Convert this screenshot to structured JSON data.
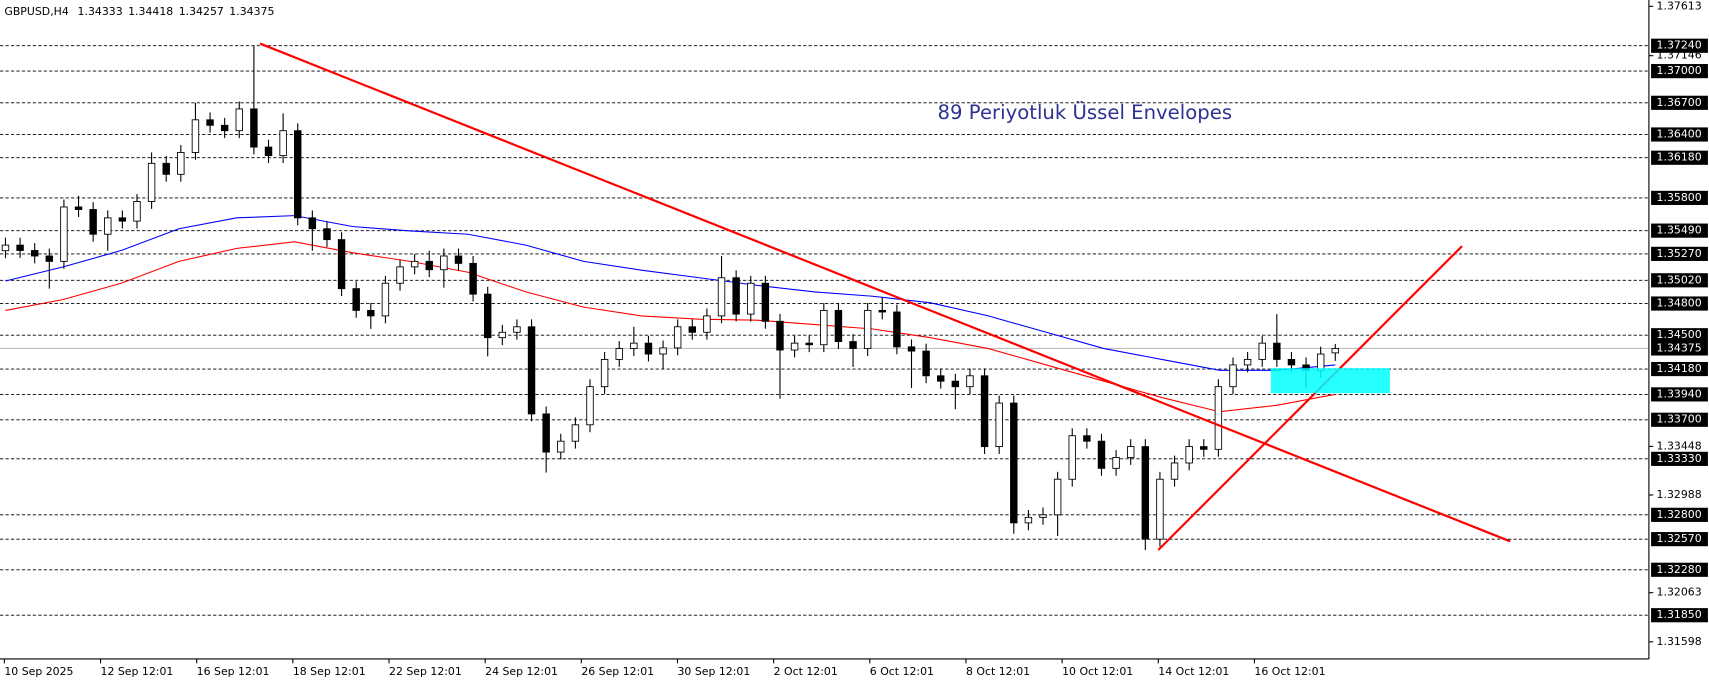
{
  "chart_data": {
    "type": "candlestick",
    "title": "GBPUSD,H4",
    "quote": [
      1.34333,
      1.34418,
      1.34257,
      1.34375
    ],
    "annotation": "89  Periyotluk Üssel Envelopes",
    "x_labels": [
      "10 Sep 2025",
      "12 Sep 12:01",
      "16 Sep 12:01",
      "18 Sep 12:01",
      "22 Sep 12:01",
      "24 Sep 12:01",
      "26 Sep 12:01",
      "30 Sep 12:01",
      "2 Oct 12:01",
      "6 Oct 12:01",
      "8 Oct 12:01",
      "10 Oct 12:01",
      "14 Oct 12:01",
      "16 Oct 12:01"
    ],
    "up_color": "#ffffff",
    "down_color": "#000000",
    "open": [
      1.353,
      1.35353,
      1.35302,
      1.3525,
      1.35199,
      1.35714,
      1.3569,
      1.35456,
      1.35611,
      1.3558,
      1.35766,
      1.36127,
      1.36023,
      1.3623,
      1.36539,
      1.36487,
      1.36436,
      1.36642,
      1.36281,
      1.362,
      1.36436,
      1.35611,
      1.35508,
      1.35405,
      1.34941,
      1.34735,
      1.34683,
      1.34992,
      1.35147,
      1.35199,
      1.3512,
      1.3525,
      1.3518,
      1.34889,
      1.34477,
      1.34528,
      1.3458,
      1.33755,
      1.33394,
      1.33497,
      1.33652,
      1.34013,
      1.34271,
      1.34374,
      1.34425,
      1.34322,
      1.3438,
      1.3458,
      1.34528,
      1.34683,
      1.35044,
      1.347,
      1.34992,
      1.34632,
      1.3436,
      1.34425,
      1.3441,
      1.34735,
      1.3444,
      1.34374,
      1.34735,
      1.3472,
      1.3439,
      1.3435,
      1.34116,
      1.34065,
      1.34013,
      1.34116,
      1.33446,
      1.33858,
      1.32724,
      1.32776,
      1.328,
      1.33137,
      1.33549,
      1.33497,
      1.3324,
      1.33343,
      1.33446,
      1.3257,
      1.33137,
      1.33291,
      1.33446,
      1.3342,
      1.34013,
      1.34219,
      1.34271,
      1.34425,
      1.34271,
      1.34219,
      1.34168,
      1.34333
    ],
    "high": [
      1.35423,
      1.35423,
      1.35372,
      1.3532,
      1.35784,
      1.3582,
      1.3576,
      1.35681,
      1.35681,
      1.35836,
      1.3623,
      1.36197,
      1.363,
      1.367,
      1.36609,
      1.36557,
      1.36712,
      1.3724,
      1.36351,
      1.366,
      1.36506,
      1.35681,
      1.35578,
      1.35475,
      1.35011,
      1.34805,
      1.35062,
      1.35217,
      1.35269,
      1.353,
      1.3532,
      1.3532,
      1.3525,
      1.34959,
      1.34598,
      1.3465,
      1.3465,
      1.33825,
      1.33567,
      1.33722,
      1.34083,
      1.34341,
      1.34444,
      1.3458,
      1.34495,
      1.3445,
      1.3465,
      1.3465,
      1.34753,
      1.3525,
      1.35114,
      1.35062,
      1.35062,
      1.34702,
      1.34495,
      1.34495,
      1.34805,
      1.34805,
      1.3451,
      1.34805,
      1.3486,
      1.3479,
      1.3446,
      1.3442,
      1.34186,
      1.34135,
      1.34186,
      1.34186,
      1.33928,
      1.33928,
      1.32846,
      1.3287,
      1.33207,
      1.33619,
      1.33619,
      1.33567,
      1.33413,
      1.33516,
      1.33516,
      1.33207,
      1.33361,
      1.33516,
      1.33516,
      1.34083,
      1.34289,
      1.34341,
      1.34495,
      1.347,
      1.34341,
      1.34289,
      1.34392,
      1.34418
    ],
    "low": [
      1.3523,
      1.35232,
      1.3518,
      1.34941,
      1.35129,
      1.3562,
      1.35386,
      1.353,
      1.3551,
      1.3551,
      1.35696,
      1.35953,
      1.35953,
      1.3616,
      1.36417,
      1.36366,
      1.36366,
      1.36211,
      1.3613,
      1.3613,
      1.35541,
      1.353,
      1.35335,
      1.34871,
      1.34665,
      1.3456,
      1.34613,
      1.34922,
      1.35077,
      1.3505,
      1.3495,
      1.3511,
      1.34819,
      1.343,
      1.34407,
      1.34458,
      1.33685,
      1.332,
      1.33324,
      1.33427,
      1.33582,
      1.33943,
      1.34201,
      1.34304,
      1.34252,
      1.3418,
      1.3431,
      1.34458,
      1.34458,
      1.34613,
      1.3463,
      1.3463,
      1.34562,
      1.339,
      1.3429,
      1.3434,
      1.3434,
      1.3437,
      1.342,
      1.34304,
      1.3465,
      1.3432,
      1.34,
      1.34046,
      1.33995,
      1.338,
      1.33943,
      1.33376,
      1.33376,
      1.32621,
      1.32654,
      1.32706,
      1.326,
      1.33067,
      1.33427,
      1.3317,
      1.3317,
      1.33273,
      1.32466,
      1.325,
      1.33067,
      1.33221,
      1.3335,
      1.3335,
      1.33943,
      1.34149,
      1.34201,
      1.34201,
      1.34149,
      1.34,
      1.34098,
      1.34257
    ],
    "close": [
      1.35353,
      1.35302,
      1.3525,
      1.35199,
      1.35714,
      1.3569,
      1.35456,
      1.35611,
      1.3558,
      1.35766,
      1.36127,
      1.36023,
      1.3623,
      1.36539,
      1.36487,
      1.36436,
      1.36642,
      1.36281,
      1.362,
      1.36436,
      1.35611,
      1.35508,
      1.35405,
      1.34941,
      1.34735,
      1.34683,
      1.34992,
      1.35147,
      1.35199,
      1.3512,
      1.3525,
      1.3518,
      1.34889,
      1.34477,
      1.34528,
      1.3458,
      1.33755,
      1.33394,
      1.33497,
      1.33652,
      1.34013,
      1.34271,
      1.34374,
      1.34425,
      1.34322,
      1.3438,
      1.3458,
      1.34528,
      1.34683,
      1.35044,
      1.347,
      1.34992,
      1.34632,
      1.3436,
      1.34425,
      1.3441,
      1.34735,
      1.3444,
      1.34374,
      1.34735,
      1.3472,
      1.3439,
      1.3435,
      1.34116,
      1.34065,
      1.34013,
      1.34116,
      1.33446,
      1.33858,
      1.32724,
      1.32776,
      1.328,
      1.33137,
      1.33549,
      1.33497,
      1.3324,
      1.33343,
      1.33446,
      1.3257,
      1.33137,
      1.33291,
      1.33446,
      1.3342,
      1.34013,
      1.34219,
      1.34271,
      1.34425,
      1.34271,
      1.34219,
      1.34168,
      1.34322,
      1.34375
    ],
    "envelope_upper": {
      "color": "#0000ff",
      "values": [
        1.35013,
        1.35147,
        1.35302,
        1.35508,
        1.35611,
        1.35632,
        1.35529,
        1.35487,
        1.35456,
        1.35353,
        1.35199,
        1.35116,
        1.35044,
        1.34972,
        1.3491,
        1.34869,
        1.34807,
        1.34683,
        1.34528,
        1.34374,
        1.34271,
        1.34168,
        1.34168,
        1.34219
      ]
    },
    "envelope_lower": {
      "color": "#ff0000",
      "values": [
        1.34735,
        1.34838,
        1.34992,
        1.35199,
        1.35322,
        1.35384,
        1.35281,
        1.35199,
        1.35096,
        1.3491,
        1.34766,
        1.34683,
        1.34652,
        1.34642,
        1.34601,
        1.34559,
        1.34477,
        1.34374,
        1.34219,
        1.34065,
        1.3391,
        1.33776,
        1.33838,
        1.33941
      ]
    },
    "levels": [
      {
        "value": 1.3724,
        "label": "1.37240"
      },
      {
        "value": 1.37,
        "label": "1.37000"
      },
      {
        "value": 1.367,
        "label": "1.36700"
      },
      {
        "value": 1.364,
        "label": "1.36400"
      },
      {
        "value": 1.3618,
        "label": "1.36180"
      },
      {
        "value": 1.358,
        "label": "1.35800"
      },
      {
        "value": 1.3549,
        "label": "1.35490"
      },
      {
        "value": 1.3527,
        "label": "1.35270"
      },
      {
        "value": 1.3502,
        "label": "1.35020"
      },
      {
        "value": 1.348,
        "label": "1.34800"
      },
      {
        "value": 1.345,
        "label": "1.34500"
      },
      {
        "value": 1.3418,
        "label": "1.34180"
      },
      {
        "value": 1.3394,
        "label": "1.33940"
      },
      {
        "value": 1.337,
        "label": "1.33700"
      },
      {
        "value": 1.3333,
        "label": "1.33330"
      },
      {
        "value": 1.328,
        "label": "1.32800"
      },
      {
        "value": 1.3257,
        "label": "1.32570"
      },
      {
        "value": 1.3228,
        "label": "1.32280"
      },
      {
        "value": 1.3185,
        "label": "1.31850"
      }
    ],
    "price_line": 1.34375,
    "ylim": [
      1.31436,
      1.37673
    ],
    "yticks": [
      1.37613,
      1.37146,
      1.33448,
      1.32988,
      1.32063,
      1.31598
    ]
  }
}
